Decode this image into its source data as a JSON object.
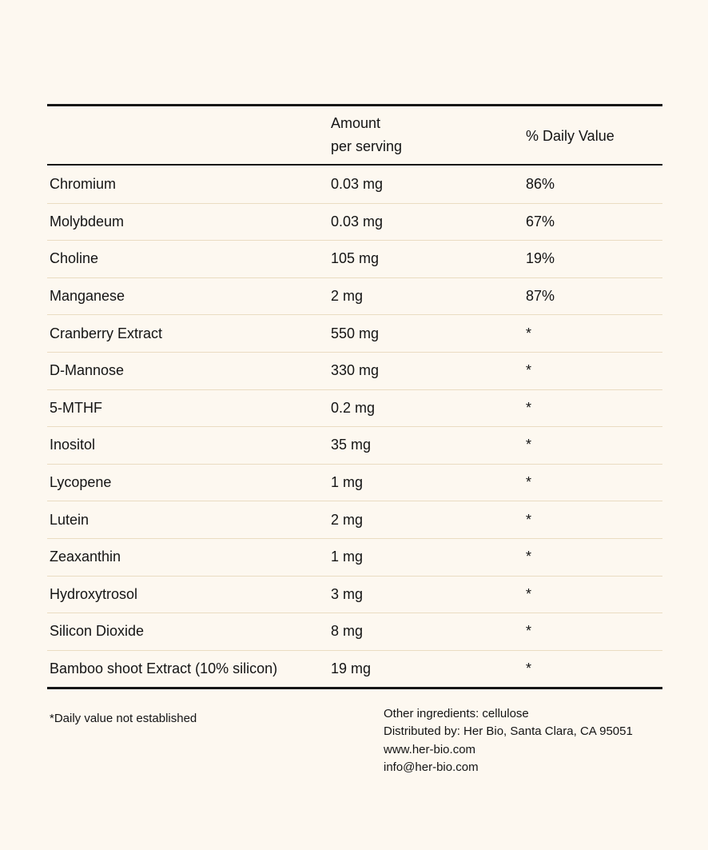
{
  "page": {
    "background_color": "#FDF8F0",
    "text_color": "#141414",
    "border_color": "#161616",
    "row_divider_color": "#EADCC2"
  },
  "table": {
    "header": {
      "amount_line1": "Amount",
      "amount_line2": "per serving",
      "daily_value": "% Daily Value"
    },
    "rows": [
      {
        "name": "Chromium",
        "amount": "0.03 mg",
        "dv": "86%"
      },
      {
        "name": "Molybdeum",
        "amount": "0.03 mg",
        "dv": "67%"
      },
      {
        "name": "Choline",
        "amount": "105 mg",
        "dv": "19%"
      },
      {
        "name": "Manganese",
        "amount": "2 mg",
        "dv": "87%"
      },
      {
        "name": "Cranberry Extract",
        "amount": "550 mg",
        "dv": "*"
      },
      {
        "name": "D-Mannose",
        "amount": "330 mg",
        "dv": "*"
      },
      {
        "name": "5-MTHF",
        "amount": "0.2 mg",
        "dv": "*"
      },
      {
        "name": "Inositol",
        "amount": "35 mg",
        "dv": "*"
      },
      {
        "name": "Lycopene",
        "amount": "1 mg",
        "dv": "*"
      },
      {
        "name": "Lutein",
        "amount": "2 mg",
        "dv": "*"
      },
      {
        "name": "Zeaxanthin",
        "amount": "1 mg",
        "dv": "*"
      },
      {
        "name": "Hydroxytrosol",
        "amount": "3 mg",
        "dv": "*"
      },
      {
        "name": "Silicon Dioxide",
        "amount": "8 mg",
        "dv": "*"
      },
      {
        "name": "Bamboo shoot Extract (10% silicon)",
        "amount": "19 mg",
        "dv": "*"
      }
    ]
  },
  "footer": {
    "footnote": "*Daily value not established",
    "info_lines": {
      "other_ingredients": "Other ingredients: cellulose",
      "distributed_by": "Distributed by: Her Bio, Santa Clara, CA 95051",
      "website": "www.her-bio.com",
      "email": "info@her-bio.com"
    }
  }
}
